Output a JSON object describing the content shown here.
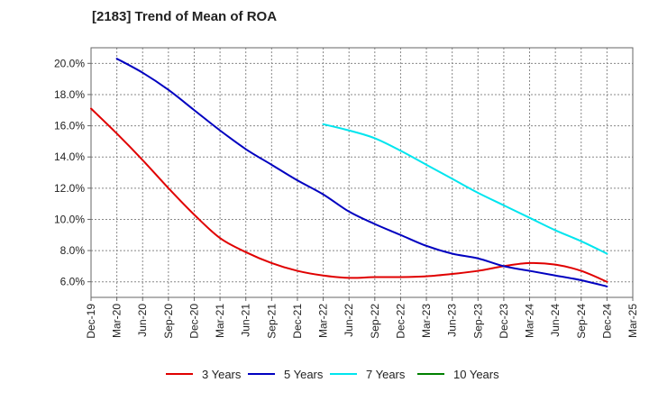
{
  "chart_data": {
    "type": "line",
    "title": "[2183]  Trend of Mean of ROA",
    "xlabel": "",
    "ylabel": "",
    "x_categories": [
      "Dec-19",
      "Mar-20",
      "Jun-20",
      "Sep-20",
      "Dec-20",
      "Mar-21",
      "Jun-21",
      "Sep-21",
      "Dec-21",
      "Mar-22",
      "Jun-22",
      "Sep-22",
      "Dec-22",
      "Mar-23",
      "Jun-23",
      "Sep-23",
      "Dec-23",
      "Mar-24",
      "Jun-24",
      "Sep-24",
      "Dec-24",
      "Mar-25"
    ],
    "y_ticks": [
      "6.0%",
      "8.0%",
      "10.0%",
      "12.0%",
      "14.0%",
      "16.0%",
      "18.0%",
      "20.0%"
    ],
    "y_tick_values": [
      6,
      8,
      10,
      12,
      14,
      16,
      18,
      20
    ],
    "ylim": [
      5.0,
      21.0
    ],
    "grid": true,
    "legend_position": "bottom",
    "series": [
      {
        "name": "3 Years",
        "color": "#e00000",
        "values": [
          17.1,
          15.5,
          13.8,
          12.0,
          10.3,
          8.8,
          7.9,
          7.2,
          6.7,
          6.4,
          6.25,
          6.3,
          6.3,
          6.35,
          6.5,
          6.7,
          7.0,
          7.2,
          7.1,
          6.7,
          6.0,
          null
        ]
      },
      {
        "name": "5 Years",
        "color": "#0000c0",
        "values": [
          null,
          20.3,
          19.4,
          18.3,
          17.0,
          15.7,
          14.5,
          13.5,
          12.5,
          11.6,
          10.5,
          9.7,
          9.0,
          8.3,
          7.8,
          7.5,
          7.0,
          6.7,
          6.4,
          6.1,
          5.7,
          null
        ]
      },
      {
        "name": "7 Years",
        "color": "#00e5ee",
        "values": [
          null,
          null,
          null,
          null,
          null,
          null,
          null,
          null,
          null,
          16.1,
          15.7,
          15.2,
          14.4,
          13.5,
          12.6,
          11.7,
          10.9,
          10.1,
          9.3,
          8.6,
          7.8,
          null
        ]
      },
      {
        "name": "10 Years",
        "color": "#008000",
        "values": [
          null,
          null,
          null,
          null,
          null,
          null,
          null,
          null,
          null,
          null,
          null,
          null,
          null,
          null,
          null,
          null,
          null,
          null,
          null,
          null,
          null,
          null
        ]
      }
    ]
  }
}
